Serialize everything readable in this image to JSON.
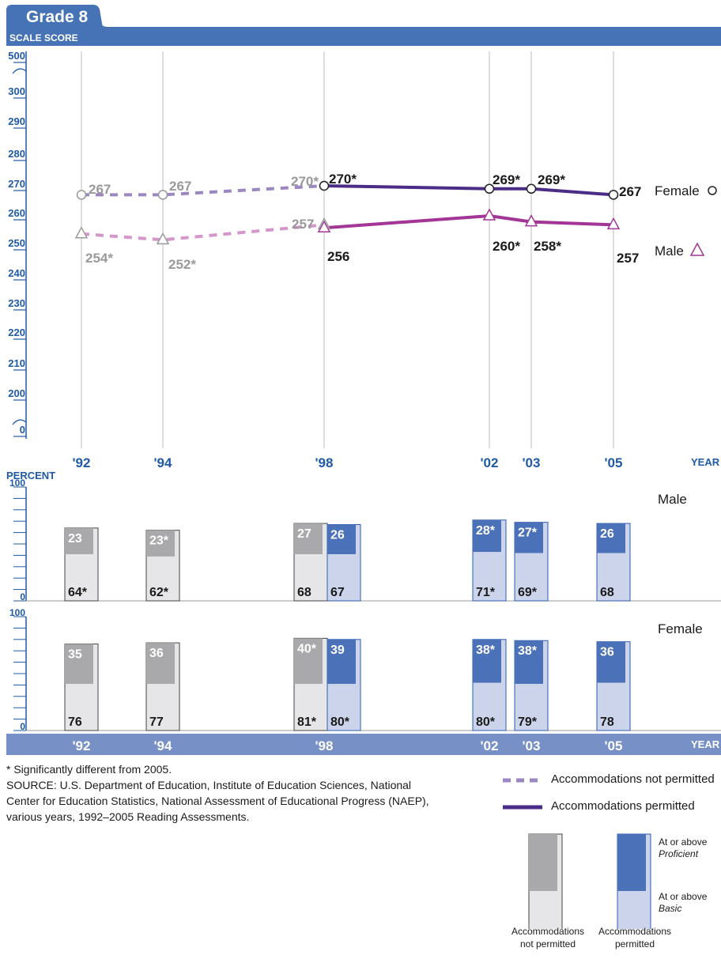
{
  "chart_data": [
    {
      "type": "line",
      "title": "Grade 8",
      "ylabel": "SCALE SCORE",
      "xlabel": "YEAR",
      "y_ticks": [
        "500",
        "300",
        "290",
        "280",
        "270",
        "260",
        "250",
        "240",
        "230",
        "220",
        "210",
        "200",
        "0"
      ],
      "ylim": [
        200,
        300
      ],
      "axis_breaks": "0 to 200 and 300 to 500",
      "x": [
        "'92",
        "'94",
        "'98",
        "'02",
        "'03",
        "'05"
      ],
      "grid": "vertical lines at each year",
      "series": [
        {
          "name": "Female",
          "marker": "circle",
          "color": "#4b2c87",
          "not_permitted": {
            "x": [
              "'92",
              "'94",
              "'98"
            ],
            "values": [
              267,
              267,
              270
            ],
            "labels": [
              "267",
              "267",
              "270*"
            ]
          },
          "permitted": {
            "x": [
              "'98",
              "'02",
              "'03",
              "'05"
            ],
            "values": [
              270,
              269,
              269,
              267
            ],
            "labels": [
              "270*",
              "269*",
              "269*",
              "267"
            ]
          }
        },
        {
          "name": "Male",
          "marker": "triangle",
          "color": "#a23596",
          "not_permitted": {
            "x": [
              "'92",
              "'94",
              "'98"
            ],
            "values": [
              254,
              252,
              257
            ],
            "labels": [
              "254*",
              "252*",
              "257"
            ]
          },
          "permitted": {
            "x": [
              "'98",
              "'02",
              "'03",
              "'05"
            ],
            "values": [
              256,
              260,
              258,
              257
            ],
            "labels": [
              "256",
              "260*",
              "258*",
              "257"
            ]
          }
        }
      ]
    },
    {
      "type": "bar",
      "ylabel": "PERCENT",
      "y_ticks": [
        "100",
        "0"
      ],
      "ylim": [
        0,
        100
      ],
      "xlabel": "YEAR",
      "categories": [
        "'92",
        "'94",
        "'98",
        "'02",
        "'03",
        "'05"
      ],
      "panels": [
        {
          "name": "Male",
          "bars": [
            {
              "x": "'92",
              "accommodations": "not permitted",
              "basic": 64,
              "basic_label": "64*",
              "proficient": 23,
              "proficient_label": "23"
            },
            {
              "x": "'94",
              "accommodations": "not permitted",
              "basic": 62,
              "basic_label": "62*",
              "proficient": 23,
              "proficient_label": "23*"
            },
            {
              "x": "'98",
              "accommodations": "not permitted",
              "basic": 68,
              "basic_label": "68",
              "proficient": 27,
              "proficient_label": "27"
            },
            {
              "x": "'98",
              "accommodations": "permitted",
              "basic": 67,
              "basic_label": "67",
              "proficient": 26,
              "proficient_label": "26"
            },
            {
              "x": "'02",
              "accommodations": "permitted",
              "basic": 71,
              "basic_label": "71*",
              "proficient": 28,
              "proficient_label": "28*"
            },
            {
              "x": "'03",
              "accommodations": "permitted",
              "basic": 69,
              "basic_label": "69*",
              "proficient": 27,
              "proficient_label": "27*"
            },
            {
              "x": "'05",
              "accommodations": "permitted",
              "basic": 68,
              "basic_label": "68",
              "proficient": 26,
              "proficient_label": "26"
            }
          ]
        },
        {
          "name": "Female",
          "bars": [
            {
              "x": "'92",
              "accommodations": "not permitted",
              "basic": 76,
              "basic_label": "76",
              "proficient": 35,
              "proficient_label": "35"
            },
            {
              "x": "'94",
              "accommodations": "not permitted",
              "basic": 77,
              "basic_label": "77",
              "proficient": 36,
              "proficient_label": "36"
            },
            {
              "x": "'98",
              "accommodations": "not permitted",
              "basic": 81,
              "basic_label": "81*",
              "proficient": 40,
              "proficient_label": "40*"
            },
            {
              "x": "'98",
              "accommodations": "permitted",
              "basic": 80,
              "basic_label": "80*",
              "proficient": 39,
              "proficient_label": "39"
            },
            {
              "x": "'02",
              "accommodations": "permitted",
              "basic": 80,
              "basic_label": "80*",
              "proficient": 38,
              "proficient_label": "38*"
            },
            {
              "x": "'03",
              "accommodations": "permitted",
              "basic": 79,
              "basic_label": "79*",
              "proficient": 38,
              "proficient_label": "38*"
            },
            {
              "x": "'05",
              "accommodations": "permitted",
              "basic": 78,
              "basic_label": "78",
              "proficient": 36,
              "proficient_label": "36"
            }
          ]
        }
      ]
    }
  ],
  "notes": {
    "significance": "* Significantly different from 2005.",
    "source_lines": [
      "SOURCE: U.S. Department of Education, Institute of Education Sciences, National",
      "Center for Education Statistics, National Assessment of Educational Progress (NAEP),",
      "various years, 1992–2005 Reading Assessments."
    ]
  },
  "legend": {
    "not_permitted_line": "Accommodations not permitted",
    "permitted_line": "Accommodations permitted",
    "proficient_line1": "At or above",
    "proficient_line2": "Proficient",
    "basic_line1": "At or above",
    "basic_line2": "Basic",
    "bar_not_permitted_line1": "Accommodations",
    "bar_not_permitted_line2": "not permitted",
    "bar_permitted_line1": "Accommodations",
    "bar_permitted_line2": "permitted"
  },
  "colors": {
    "header_blue": "#4672b6",
    "axis_blue": "#1f5aa6",
    "female_line": "#4b2c87",
    "female_dashed": "#9b87c2",
    "male_line": "#a23596",
    "male_dashed": "#d496cb",
    "greyed_label": "#999999",
    "bar_np_light": "#e6e6e8",
    "bar_np_dark": "#a9a9ab",
    "bar_p_light": "#ccd4ec",
    "bar_p_dark": "#4b72b8",
    "year_band": "#7791c6"
  }
}
